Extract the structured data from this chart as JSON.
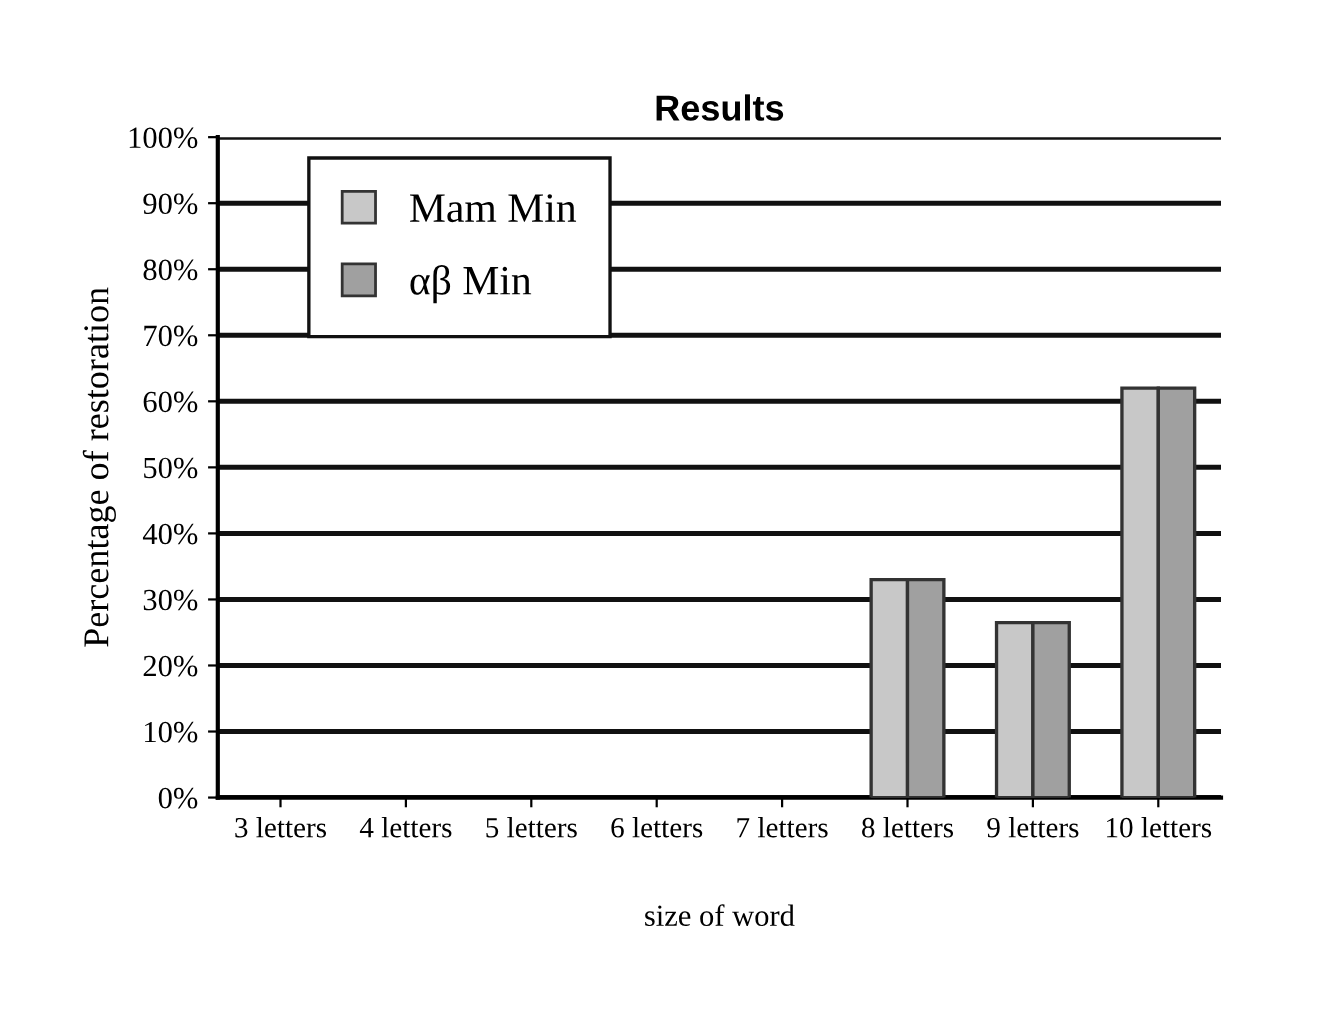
{
  "chart_data": {
    "type": "bar",
    "title": "Results",
    "xlabel": "size of word",
    "ylabel": "Percentage of restoration",
    "categories": [
      "3 letters",
      "4 letters",
      "5 letters",
      "6 letters",
      "7 letters",
      "8 letters",
      "9 letters",
      "10 letters"
    ],
    "series": [
      {
        "name": "Mam Min",
        "color": "#c8c8c8",
        "values": [
          null,
          null,
          null,
          null,
          null,
          33,
          26.5,
          62
        ]
      },
      {
        "name": "αβ Min",
        "color": "#a0a0a0",
        "values": [
          null,
          null,
          null,
          null,
          null,
          33,
          26.5,
          62
        ]
      }
    ],
    "ylim": [
      0,
      100
    ],
    "yticks": [
      {
        "value": 0,
        "label": "0%"
      },
      {
        "value": 10,
        "label": "10%"
      },
      {
        "value": 20,
        "label": "20%"
      },
      {
        "value": 30,
        "label": "30%"
      },
      {
        "value": 40,
        "label": "40%"
      },
      {
        "value": 50,
        "label": "50%"
      },
      {
        "value": 60,
        "label": "60%"
      },
      {
        "value": 70,
        "label": "70%"
      },
      {
        "value": 80,
        "label": "80%"
      },
      {
        "value": 90,
        "label": "90%"
      },
      {
        "value": 100,
        "label": "100%"
      }
    ],
    "grid": "y",
    "legend": "top left"
  }
}
